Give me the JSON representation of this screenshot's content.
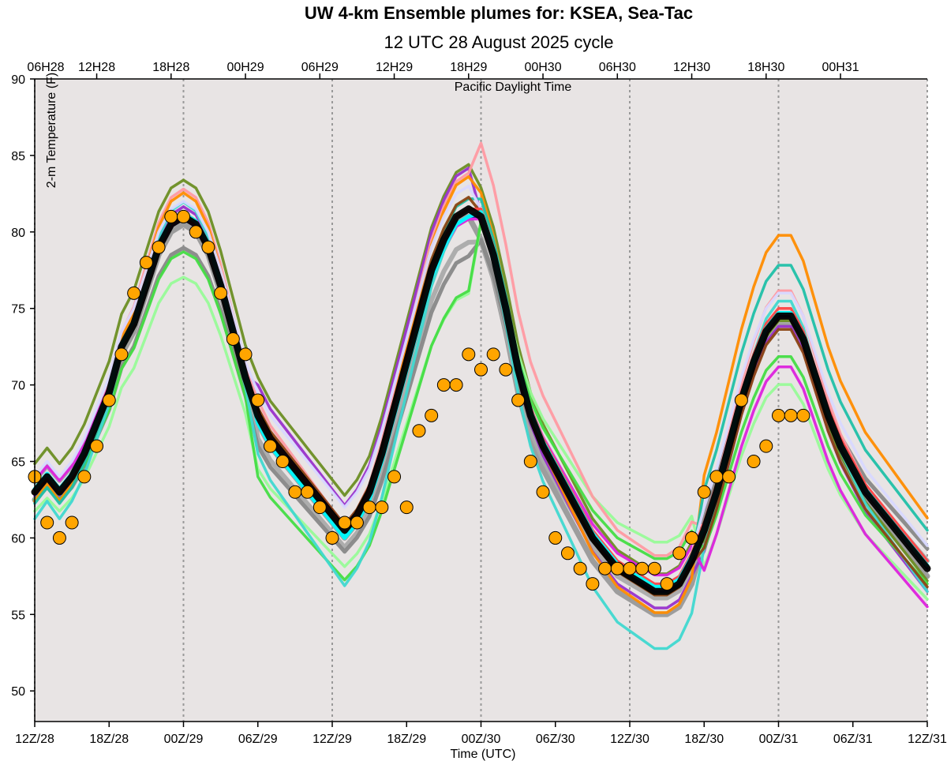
{
  "chart_data": {
    "type": "line",
    "title": "UW 4-km Ensemble plumes for: KSEA, Sea-Tac",
    "subtitle": "12 UTC 28 August 2025 cycle",
    "ylabel": "2-m Temperature (F)",
    "xlabel": "Time (UTC)",
    "top_axis_label": "Pacific Daylight Time",
    "ylim": [
      48,
      90
    ],
    "xlim_hours": [
      0,
      72
    ],
    "y_ticks": [
      50,
      55,
      60,
      65,
      70,
      75,
      80,
      85,
      90
    ],
    "x_ticks": [
      {
        "h": 0,
        "label": "12Z/28"
      },
      {
        "h": 6,
        "label": "18Z/28"
      },
      {
        "h": 12,
        "label": "00Z/29"
      },
      {
        "h": 18,
        "label": "06Z/29"
      },
      {
        "h": 24,
        "label": "12Z/29"
      },
      {
        "h": 30,
        "label": "18Z/29"
      },
      {
        "h": 36,
        "label": "00Z/30"
      },
      {
        "h": 42,
        "label": "06Z/30"
      },
      {
        "h": 48,
        "label": "12Z/30"
      },
      {
        "h": 54,
        "label": "18Z/30"
      },
      {
        "h": 60,
        "label": "00Z/31"
      },
      {
        "h": 66,
        "label": "06Z/31"
      },
      {
        "h": 72,
        "label": "12Z/31"
      }
    ],
    "top_ticks": [
      {
        "h": -1,
        "label": "06H28"
      },
      {
        "h": 5,
        "label": "12H28"
      },
      {
        "h": 11,
        "label": "18H28"
      },
      {
        "h": 17,
        "label": "00H29"
      },
      {
        "h": 23,
        "label": "06H29"
      },
      {
        "h": 29,
        "label": "12H29"
      },
      {
        "h": 35,
        "label": "18H29"
      },
      {
        "h": 41,
        "label": "00H30"
      },
      {
        "h": 47,
        "label": "06H30"
      },
      {
        "h": 53,
        "label": "12H30"
      },
      {
        "h": 59,
        "label": "18H30"
      },
      {
        "h": 65,
        "label": "00H31"
      }
    ],
    "dotted_lines_hours": [
      0,
      12,
      24,
      36,
      48,
      60,
      72
    ],
    "colors": {
      "background": "#e8e4e4",
      "mean": "#000000",
      "control": "#00ffff",
      "obs_fill": "#ffa500",
      "obs_edge": "#000000"
    },
    "base_series": [
      63,
      64,
      63,
      64,
      65.5,
      67.5,
      69.5,
      72.5,
      74,
      76.5,
      79,
      80.5,
      81,
      80.5,
      79,
      76.5,
      73.5,
      70.5,
      68,
      66.5,
      65.5,
      64.5,
      63.5,
      62.5,
      61.5,
      60.5,
      61.5,
      63,
      65.5,
      68.5,
      71.5,
      74.5,
      77.5,
      79.5,
      81,
      81.5,
      81,
      78.5,
      75,
      71,
      68,
      66,
      64.5,
      63,
      61.5,
      60,
      59,
      58,
      57.5,
      57,
      56.5,
      56.5,
      57,
      58.5,
      60.5,
      63,
      66,
      69,
      71.5,
      73.5,
      74.5,
      74.5,
      73,
      70.5,
      68,
      66,
      64.5,
      63,
      62,
      61,
      60,
      59,
      58
    ],
    "series": [
      {
        "name": "mean",
        "color": "#000000",
        "width": 9,
        "offsets": [
          0,
          0,
          0,
          0
        ],
        "scale": 1.0
      },
      {
        "name": "member-gray-1",
        "color": "#999999",
        "width": 7,
        "offsets": [
          -0.5,
          -0.5,
          -1.5,
          -0.5
        ],
        "scale": 1.0
      },
      {
        "name": "member-gray-2",
        "color": "#aaaaaa",
        "width": 6,
        "offsets": [
          0.5,
          -1.5,
          -1,
          0
        ],
        "scale": 0.95
      },
      {
        "name": "member-gray-3",
        "color": "#888888",
        "width": 5,
        "offsets": [
          -1,
          -2,
          -0.5,
          0.5
        ],
        "scale": 0.92
      },
      {
        "name": "member-olive",
        "color": "#6b8e23",
        "width": 3.5,
        "offsets": [
          2,
          2.5,
          1.5,
          -0.5
        ],
        "scale": 1.03
      },
      {
        "name": "member-purple",
        "color": "#9932cc",
        "width": 3.5,
        "offsets": [
          0,
          2,
          -0.5,
          -1
        ],
        "scale": 1.05
      },
      {
        "name": "member-light-green",
        "color": "#98fb98",
        "width": 3.5,
        "offsets": [
          -2,
          -3.5,
          1.5,
          -3.5
        ],
        "scale": 0.85
      },
      {
        "name": "member-green",
        "color": "#44dd44",
        "width": 3.5,
        "offsets": [
          -1,
          -4,
          1,
          -2
        ],
        "scale": 0.9
      },
      {
        "name": "member-pink",
        "color": "#ff9aa2",
        "width": 3.5,
        "offsets": [
          0.5,
          1,
          3.5,
          1
        ],
        "scale": 1.1
      },
      {
        "name": "member-orange",
        "color": "#ff8c00",
        "width": 3.5,
        "offsets": [
          0,
          0.5,
          0,
          4.5
        ],
        "scale": 1.12
      },
      {
        "name": "member-teal",
        "color": "#20c0a8",
        "width": 3.5,
        "offsets": [
          -0.5,
          0,
          0.5,
          3
        ],
        "scale": 1.05
      },
      {
        "name": "member-turquoise",
        "color": "#40d8d0",
        "width": 3.5,
        "offsets": [
          -1,
          -2.5,
          -2,
          0
        ],
        "scale": 1.15
      },
      {
        "name": "member-navy",
        "color": "#1f1f8f",
        "width": 3.5,
        "offsets": [
          0,
          -0.5,
          0,
          0
        ],
        "scale": 1.0
      },
      {
        "name": "member-magenta",
        "color": "#dd22dd",
        "width": 3.5,
        "offsets": [
          0.5,
          0,
          0.5,
          -3
        ],
        "scale": 0.95
      },
      {
        "name": "member-brown",
        "color": "#8b4513",
        "width": 3.5,
        "offsets": [
          0,
          0.5,
          0,
          -1
        ],
        "scale": 1.02
      },
      {
        "name": "member-lavender",
        "color": "#d8d8ff",
        "width": 3.5,
        "offsets": [
          1,
          1.5,
          0.5,
          1.5
        ],
        "scale": 1.0
      },
      {
        "name": "member-red",
        "color": "#ff4444",
        "width": 3.5,
        "offsets": [
          0,
          0,
          0.5,
          0.5
        ],
        "scale": 1.0
      },
      {
        "name": "control",
        "color": "#00ffff",
        "width": 5,
        "offsets": [
          0.2,
          -0.5,
          0.3,
          0.2
        ],
        "scale": 1.0
      }
    ],
    "observations": {
      "name": "KSEA observed",
      "x": [
        0,
        1,
        2,
        3,
        4,
        5,
        6,
        7,
        8,
        9,
        10,
        11,
        12,
        13,
        14,
        15,
        16,
        17,
        18,
        19,
        20,
        21,
        22,
        23,
        24,
        25,
        26,
        27,
        28,
        29,
        30,
        31,
        32,
        33,
        34,
        35,
        36,
        37,
        38,
        39,
        40,
        41,
        42,
        43,
        44,
        45,
        46,
        47,
        48,
        49,
        50,
        51,
        52,
        53,
        54,
        55,
        56,
        57,
        58,
        59,
        60,
        61,
        62
      ],
      "y": [
        64,
        61,
        60,
        61,
        64,
        66,
        69,
        72,
        76,
        78,
        79,
        81,
        81,
        80,
        79,
        76,
        73,
        72,
        69,
        66,
        65,
        63,
        63,
        62,
        60,
        61,
        61,
        62,
        62,
        64,
        62,
        67,
        68,
        70,
        70,
        72,
        71,
        72,
        71,
        69,
        65,
        63,
        60,
        59,
        58,
        57,
        58,
        58,
        58,
        58,
        58,
        57,
        59,
        60,
        63,
        64,
        64,
        69,
        65,
        66,
        68,
        68,
        68
      ]
    }
  }
}
